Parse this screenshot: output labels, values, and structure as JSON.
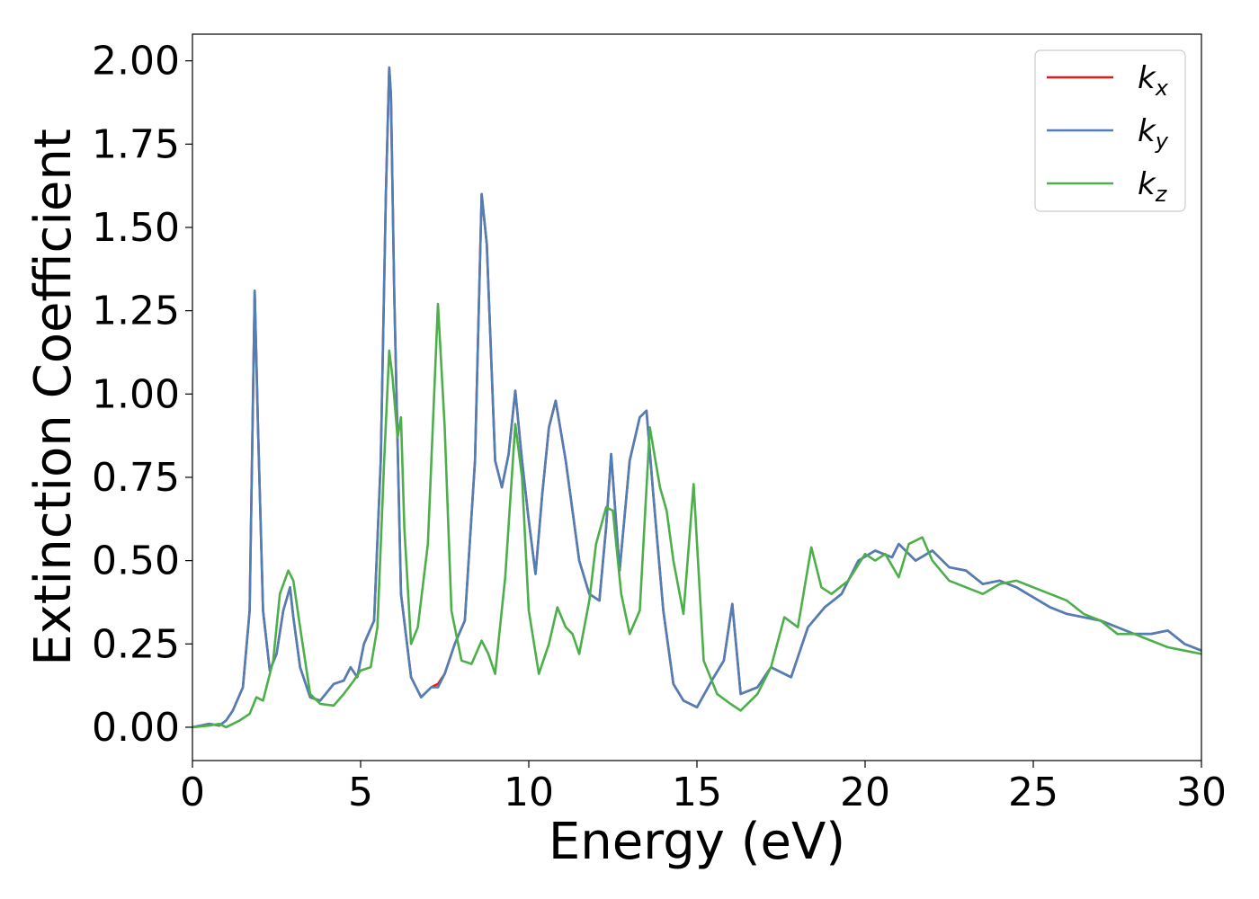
{
  "chart_data": {
    "type": "line",
    "xlabel": "Energy (eV)",
    "ylabel": "Extinction Coefficient",
    "xlim": [
      0,
      30
    ],
    "ylim": [
      -0.1,
      2.08
    ],
    "xticks": [
      0,
      5,
      10,
      15,
      20,
      25,
      30
    ],
    "xtick_labels": [
      "0",
      "5",
      "10",
      "15",
      "20",
      "25",
      "30"
    ],
    "yticks": [
      0.0,
      0.25,
      0.5,
      0.75,
      1.0,
      1.25,
      1.5,
      1.75,
      2.0
    ],
    "ytick_labels": [
      "0.00",
      "0.25",
      "0.50",
      "0.75",
      "1.00",
      "1.25",
      "1.50",
      "1.75",
      "2.00"
    ],
    "grid": false,
    "legend_position": "top-right",
    "series": [
      {
        "name": "k_x",
        "label_main": "k",
        "label_sub": "x",
        "color": "#e41a1c",
        "x": [
          0,
          0.5,
          0.8,
          1.0,
          1.2,
          1.5,
          1.7,
          1.85,
          1.95,
          2.1,
          2.3,
          2.5,
          2.7,
          2.9,
          3.0,
          3.2,
          3.5,
          3.8,
          4.2,
          4.5,
          4.7,
          4.9,
          5.1,
          5.4,
          5.6,
          5.75,
          5.85,
          5.9,
          6.0,
          6.2,
          6.5,
          6.8,
          7.1,
          7.3,
          7.5,
          7.8,
          8.1,
          8.4,
          8.6,
          8.75,
          9.0,
          9.2,
          9.4,
          9.6,
          9.8,
          10.0,
          10.2,
          10.4,
          10.6,
          10.8,
          11.1,
          11.5,
          11.8,
          12.1,
          12.3,
          12.45,
          12.7,
          13.0,
          13.3,
          13.5,
          13.7,
          14.0,
          14.3,
          14.6,
          15.0,
          15.5,
          15.8,
          16.05,
          16.3,
          16.8,
          17.2,
          17.8,
          18.3,
          18.8,
          19.3,
          19.8,
          20.3,
          20.8,
          21.0,
          21.5,
          22.0,
          22.5,
          23.0,
          23.5,
          24.0,
          24.5,
          25.0,
          25.5,
          26.0,
          26.5,
          27.0,
          27.5,
          28.0,
          28.5,
          29.0,
          29.5,
          30.0
        ],
        "y": [
          0.0,
          0.01,
          0.005,
          0.02,
          0.05,
          0.12,
          0.35,
          1.31,
          0.9,
          0.35,
          0.17,
          0.22,
          0.35,
          0.42,
          0.33,
          0.18,
          0.09,
          0.08,
          0.13,
          0.14,
          0.18,
          0.15,
          0.25,
          0.32,
          0.8,
          1.6,
          1.98,
          1.9,
          1.3,
          0.4,
          0.15,
          0.09,
          0.12,
          0.13,
          0.16,
          0.25,
          0.32,
          0.8,
          1.6,
          1.45,
          0.8,
          0.72,
          0.82,
          1.01,
          0.8,
          0.62,
          0.46,
          0.7,
          0.9,
          0.98,
          0.8,
          0.5,
          0.4,
          0.38,
          0.6,
          0.82,
          0.47,
          0.8,
          0.93,
          0.95,
          0.7,
          0.35,
          0.13,
          0.08,
          0.06,
          0.15,
          0.2,
          0.37,
          0.1,
          0.12,
          0.18,
          0.15,
          0.3,
          0.36,
          0.4,
          0.5,
          0.53,
          0.51,
          0.55,
          0.5,
          0.53,
          0.48,
          0.47,
          0.43,
          0.44,
          0.42,
          0.39,
          0.36,
          0.34,
          0.33,
          0.32,
          0.3,
          0.28,
          0.28,
          0.29,
          0.25,
          0.23
        ]
      },
      {
        "name": "k_y",
        "label_main": "k",
        "label_sub": "y",
        "color": "#4f7fb7",
        "x": [
          0,
          0.5,
          0.8,
          1.0,
          1.2,
          1.5,
          1.7,
          1.85,
          1.95,
          2.1,
          2.3,
          2.5,
          2.7,
          2.9,
          3.0,
          3.2,
          3.5,
          3.8,
          4.2,
          4.5,
          4.7,
          4.9,
          5.1,
          5.4,
          5.6,
          5.75,
          5.85,
          5.9,
          6.0,
          6.2,
          6.5,
          6.8,
          7.1,
          7.3,
          7.5,
          7.8,
          8.1,
          8.4,
          8.6,
          8.75,
          9.0,
          9.2,
          9.4,
          9.6,
          9.8,
          10.0,
          10.2,
          10.4,
          10.6,
          10.8,
          11.1,
          11.5,
          11.8,
          12.1,
          12.3,
          12.45,
          12.7,
          13.0,
          13.3,
          13.5,
          13.7,
          14.0,
          14.3,
          14.6,
          15.0,
          15.5,
          15.8,
          16.05,
          16.3,
          16.8,
          17.2,
          17.8,
          18.3,
          18.8,
          19.3,
          19.8,
          20.3,
          20.8,
          21.0,
          21.5,
          22.0,
          22.5,
          23.0,
          23.5,
          24.0,
          24.5,
          25.0,
          25.5,
          26.0,
          26.5,
          27.0,
          27.5,
          28.0,
          28.5,
          29.0,
          29.5,
          30.0
        ],
        "y": [
          0.0,
          0.01,
          0.005,
          0.02,
          0.05,
          0.12,
          0.35,
          1.31,
          0.9,
          0.35,
          0.17,
          0.22,
          0.35,
          0.42,
          0.33,
          0.18,
          0.09,
          0.08,
          0.13,
          0.14,
          0.18,
          0.15,
          0.25,
          0.32,
          0.8,
          1.6,
          1.98,
          1.9,
          1.3,
          0.4,
          0.15,
          0.09,
          0.12,
          0.12,
          0.16,
          0.25,
          0.32,
          0.8,
          1.6,
          1.45,
          0.8,
          0.72,
          0.82,
          1.01,
          0.8,
          0.62,
          0.46,
          0.7,
          0.9,
          0.98,
          0.8,
          0.5,
          0.4,
          0.38,
          0.6,
          0.82,
          0.47,
          0.8,
          0.93,
          0.95,
          0.7,
          0.35,
          0.13,
          0.08,
          0.06,
          0.15,
          0.2,
          0.37,
          0.1,
          0.12,
          0.18,
          0.15,
          0.3,
          0.36,
          0.4,
          0.5,
          0.53,
          0.51,
          0.55,
          0.5,
          0.53,
          0.48,
          0.47,
          0.43,
          0.44,
          0.42,
          0.39,
          0.36,
          0.34,
          0.33,
          0.32,
          0.3,
          0.28,
          0.28,
          0.29,
          0.25,
          0.23
        ]
      },
      {
        "name": "k_z",
        "label_main": "k",
        "label_sub": "z",
        "color": "#4daf4a",
        "x": [
          0,
          0.5,
          0.8,
          1.0,
          1.4,
          1.7,
          1.9,
          2.1,
          2.4,
          2.6,
          2.85,
          3.0,
          3.2,
          3.5,
          3.8,
          4.2,
          4.5,
          4.8,
          5.0,
          5.3,
          5.5,
          5.7,
          5.85,
          5.95,
          6.1,
          6.2,
          6.3,
          6.5,
          6.7,
          7.0,
          7.3,
          7.5,
          7.7,
          8.0,
          8.3,
          8.6,
          8.8,
          9.0,
          9.3,
          9.6,
          9.8,
          10.0,
          10.3,
          10.6,
          10.85,
          11.1,
          11.3,
          11.5,
          11.8,
          12.0,
          12.3,
          12.5,
          12.75,
          13.0,
          13.3,
          13.6,
          13.9,
          14.1,
          14.3,
          14.6,
          14.9,
          15.2,
          15.6,
          16.0,
          16.3,
          16.8,
          17.2,
          17.6,
          18.0,
          18.4,
          18.7,
          19.0,
          19.5,
          20.0,
          20.3,
          20.6,
          21.0,
          21.3,
          21.7,
          22.0,
          22.5,
          23.0,
          23.5,
          24.0,
          24.5,
          25.0,
          25.5,
          26.0,
          26.5,
          27.0,
          27.5,
          28.0,
          28.5,
          29.0,
          29.5,
          30.0
        ],
        "y": [
          0.0,
          0.005,
          0.01,
          0.0,
          0.02,
          0.04,
          0.09,
          0.08,
          0.2,
          0.4,
          0.47,
          0.44,
          0.3,
          0.1,
          0.07,
          0.065,
          0.1,
          0.14,
          0.17,
          0.18,
          0.3,
          0.8,
          1.13,
          1.05,
          0.87,
          0.93,
          0.6,
          0.25,
          0.3,
          0.55,
          1.27,
          0.9,
          0.35,
          0.2,
          0.19,
          0.26,
          0.22,
          0.16,
          0.45,
          0.91,
          0.75,
          0.35,
          0.16,
          0.25,
          0.36,
          0.3,
          0.28,
          0.22,
          0.38,
          0.55,
          0.66,
          0.65,
          0.4,
          0.28,
          0.35,
          0.9,
          0.72,
          0.65,
          0.5,
          0.34,
          0.73,
          0.2,
          0.1,
          0.07,
          0.05,
          0.1,
          0.18,
          0.33,
          0.3,
          0.54,
          0.42,
          0.4,
          0.44,
          0.52,
          0.5,
          0.52,
          0.45,
          0.55,
          0.57,
          0.5,
          0.44,
          0.42,
          0.4,
          0.43,
          0.44,
          0.42,
          0.4,
          0.38,
          0.34,
          0.32,
          0.28,
          0.28,
          0.26,
          0.24,
          0.23,
          0.22
        ]
      }
    ]
  }
}
